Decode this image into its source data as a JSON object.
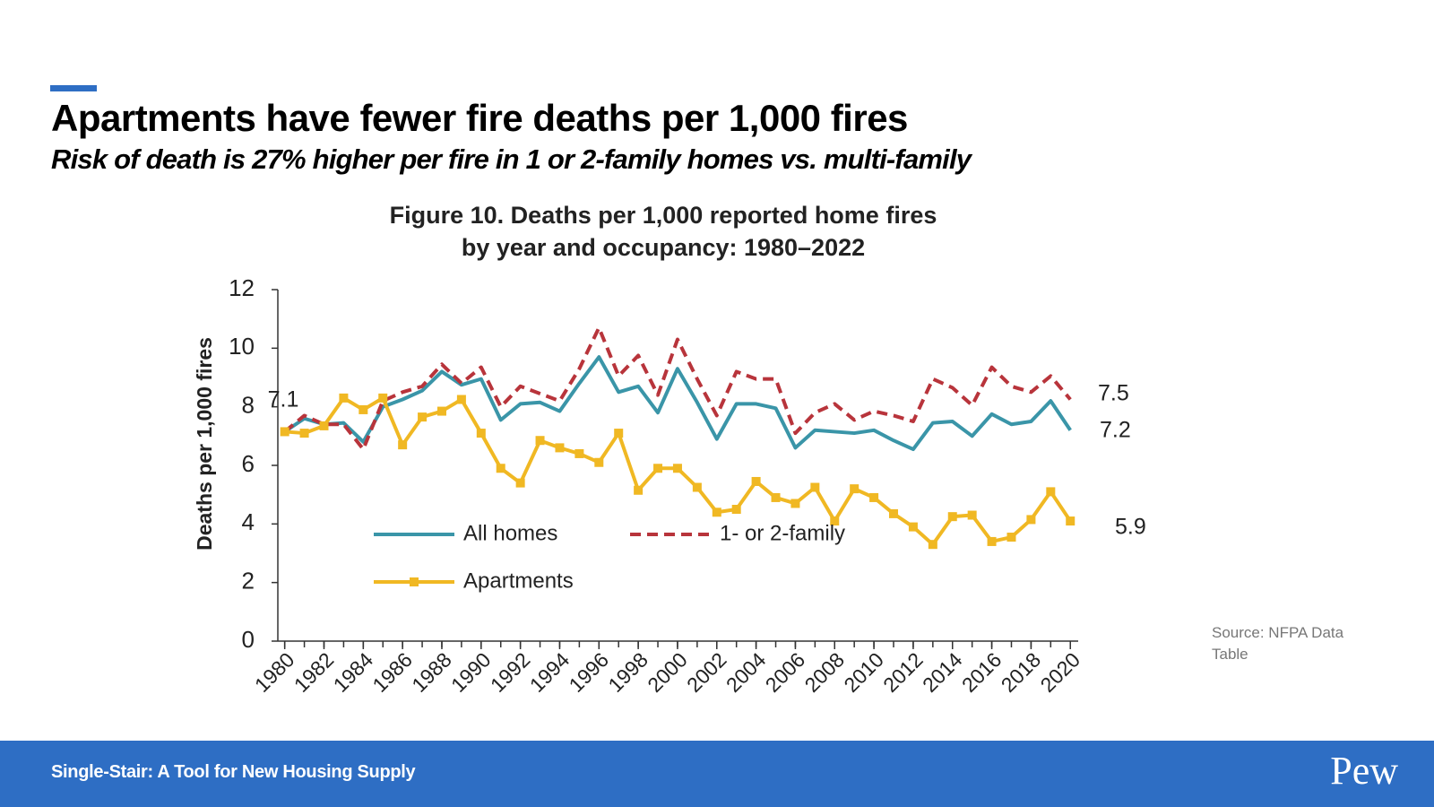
{
  "header": {
    "title": "Apartments have fewer fire deaths per 1,000 fires",
    "subtitle": "Risk of death is 27% higher per fire in 1 or 2-family homes vs. multi-family"
  },
  "chart_data": {
    "type": "line",
    "title": [
      "Figure 10. Deaths per 1,000 reported home fires",
      "by year and occupancy: 1980–2022"
    ],
    "y_label": "Deaths per 1,000 fires",
    "x": [
      1980,
      1981,
      1982,
      1983,
      1984,
      1985,
      1986,
      1987,
      1988,
      1989,
      1990,
      1991,
      1992,
      1993,
      1994,
      1995,
      1996,
      1997,
      1998,
      1999,
      2000,
      2001,
      2002,
      2003,
      2004,
      2005,
      2006,
      2007,
      2008,
      2009,
      2010,
      2011,
      2012,
      2013,
      2014,
      2015,
      2016,
      2017,
      2018,
      2019,
      2020
    ],
    "xlim": [
      1979.65,
      2020.4
    ],
    "xticks": [
      1980,
      1982,
      1984,
      1986,
      1988,
      1990,
      1992,
      1994,
      1996,
      1998,
      2000,
      2002,
      2004,
      2006,
      2008,
      2010,
      2012,
      2014,
      2016,
      2018,
      2020
    ],
    "ylim": [
      0,
      12
    ],
    "yticks": [
      0,
      2,
      4,
      6,
      8,
      10,
      12
    ],
    "series": [
      {
        "name": "All homes",
        "color": "#3a95a8",
        "dash": false,
        "marker": null,
        "values": [
          7.15,
          7.6,
          7.4,
          7.45,
          6.8,
          8.0,
          8.25,
          8.55,
          9.2,
          8.75,
          8.95,
          7.55,
          8.1,
          8.15,
          7.85,
          8.8,
          9.7,
          8.5,
          8.7,
          7.8,
          9.3,
          8.15,
          6.9,
          8.1,
          8.1,
          7.95,
          6.6,
          7.2,
          7.15,
          7.1,
          7.2,
          6.85,
          6.55,
          7.45,
          7.5,
          7.0,
          7.75,
          7.4,
          7.5,
          8.2,
          7.2
        ]
      },
      {
        "name": "1- or 2-family",
        "color": "#b8343b",
        "dash": true,
        "marker": null,
        "values": [
          7.15,
          7.7,
          7.4,
          7.4,
          6.55,
          8.2,
          8.5,
          8.7,
          9.45,
          8.8,
          9.35,
          8.0,
          8.7,
          8.45,
          8.2,
          9.3,
          10.7,
          9.05,
          9.75,
          8.4,
          10.3,
          8.95,
          7.7,
          9.2,
          8.95,
          8.95,
          7.1,
          7.8,
          8.1,
          7.55,
          7.85,
          7.7,
          7.5,
          8.95,
          8.65,
          8.05,
          9.35,
          8.7,
          8.5,
          9.05,
          8.25
        ]
      },
      {
        "name": "Apartments",
        "color": "#f0b823",
        "dash": false,
        "marker": "square",
        "values": [
          7.15,
          7.1,
          7.35,
          8.3,
          7.9,
          8.3,
          6.7,
          7.65,
          7.85,
          8.25,
          7.1,
          5.9,
          5.4,
          6.85,
          6.6,
          6.4,
          6.1,
          7.1,
          5.15,
          5.9,
          5.9,
          5.25,
          4.4,
          4.5,
          5.45,
          4.9,
          4.7,
          5.25,
          4.1,
          5.2,
          4.9,
          4.35,
          3.9,
          3.3,
          4.25,
          4.3,
          3.4,
          3.55,
          4.15,
          5.1,
          4.1
        ]
      }
    ],
    "annotations": [
      "7.1",
      "7.5",
      "7.2",
      "5.9"
    ]
  },
  "source": "Source: NFPA Data Table",
  "footer": {
    "text": "Single-Stair: A Tool for New Housing Supply",
    "logo": "Pew"
  }
}
